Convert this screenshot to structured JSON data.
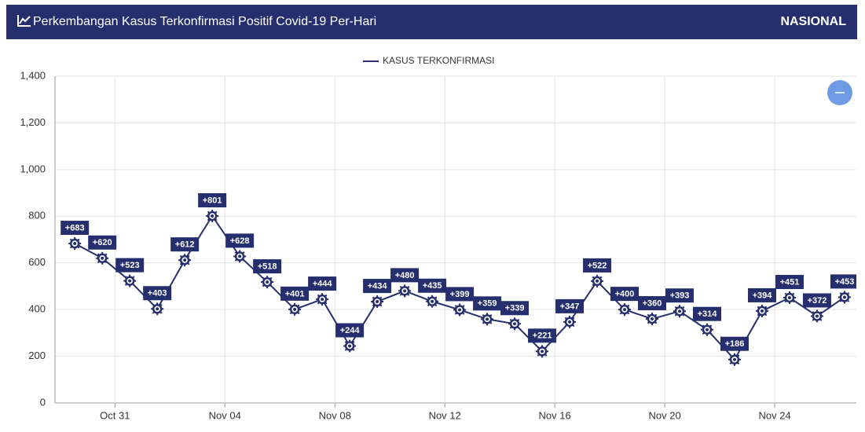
{
  "header": {
    "title": "Perkembangan Kasus Terkonfirmasi Positif Covid-19 Per-Hari",
    "region": "NASIONAL"
  },
  "chart_data": {
    "type": "line",
    "x": [
      0,
      1,
      2,
      3,
      4,
      5,
      6,
      7,
      8,
      9,
      10,
      11,
      12,
      13,
      14,
      15,
      16,
      17,
      18,
      19,
      20,
      21,
      22,
      23,
      24,
      25,
      26,
      27,
      28
    ],
    "series": [
      {
        "name": "KASUS TERKONFIRMASI",
        "color": "#262f6e",
        "values": [
          683,
          620,
          523,
          403,
          612,
          801,
          628,
          518,
          401,
          444,
          244,
          434,
          480,
          435,
          399,
          359,
          339,
          221,
          347,
          522,
          400,
          360,
          393,
          314,
          186,
          394,
          451,
          372,
          453
        ],
        "value_labels": [
          "+683",
          "+620",
          "+523",
          "+403",
          "+612",
          "+801",
          "+628",
          "+518",
          "+401",
          "+444",
          "+244",
          "+434",
          "+480",
          "+435",
          "+399",
          "+359",
          "+339",
          "+221",
          "+347",
          "+522",
          "+400",
          "+360",
          "+393",
          "+314",
          "+186",
          "+394",
          "+451",
          "+372",
          "+453"
        ]
      }
    ],
    "xlim": [
      -0.72,
      28.43
    ],
    "xticks": [
      {
        "value": 1.46,
        "label": "Oct 31"
      },
      {
        "value": 5.46,
        "label": "Nov 04"
      },
      {
        "value": 9.46,
        "label": "Nov 08"
      },
      {
        "value": 13.46,
        "label": "Nov 12"
      },
      {
        "value": 17.46,
        "label": "Nov 16"
      },
      {
        "value": 21.46,
        "label": "Nov 20"
      },
      {
        "value": 25.46,
        "label": "Nov 24"
      }
    ],
    "ylim": [
      0,
      1400
    ],
    "yticks": [
      0,
      {
        "value": 200,
        "label": "200"
      },
      400,
      600,
      800,
      {
        "value": 1000,
        "label": "1,000"
      },
      {
        "value": 1200,
        "label": "1,200"
      },
      {
        "value": 1400,
        "label": "1,400"
      }
    ],
    "grid": true
  }
}
